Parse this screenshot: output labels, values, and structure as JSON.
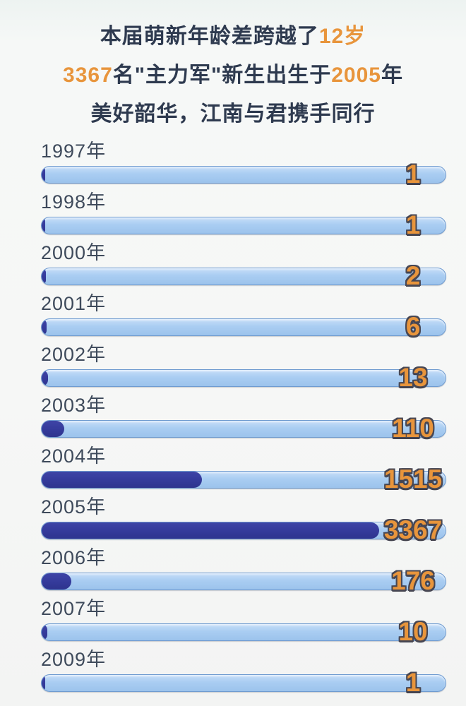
{
  "header": {
    "lines": [
      {
        "segments": [
          {
            "text": "本届萌新年龄差跨越了",
            "color": "navy"
          },
          {
            "text": "12岁",
            "color": "orange"
          }
        ]
      },
      {
        "segments": [
          {
            "text": "3367",
            "color": "orange"
          },
          {
            "text": "名\"主力军\"新生出生于",
            "color": "navy"
          },
          {
            "text": "2005",
            "color": "orange"
          },
          {
            "text": "年",
            "color": "navy"
          }
        ]
      },
      {
        "segments": [
          {
            "text": "美好韶华，江南与君携手同行",
            "color": "navy"
          }
        ]
      }
    ]
  },
  "chart_data": {
    "type": "bar",
    "orientation": "horizontal",
    "title": "本届萌新年龄差跨越了12岁，3367名\"主力军\"新生出生于2005年，美好韶华，江南与君携手同行",
    "categories": [
      "1997年",
      "1998年",
      "2000年",
      "2001年",
      "2002年",
      "2003年",
      "2004年",
      "2005年",
      "2006年",
      "2007年",
      "2009年"
    ],
    "values": [
      1,
      1,
      2,
      6,
      13,
      110,
      1515,
      3367,
      176,
      10,
      1
    ],
    "fill_pct": [
      0.8,
      0.8,
      1.0,
      1.2,
      1.6,
      5.6,
      39.7,
      83.5,
      7.3,
      1.4,
      0.8
    ],
    "xlabel": "",
    "ylabel": "",
    "legend": "none",
    "grid": "off",
    "colors": {
      "track_blue": "#a9cdf2",
      "track_border": "#6f9bd0",
      "fill_indigo": "#343a9a",
      "value_orange": "#e8953c",
      "value_outline": "#474754",
      "label_gray_blue": "#3e4a5b",
      "title_navy": "#2e3a4f",
      "accent_orange": "#e8953c",
      "background": "#f6f7f6"
    }
  }
}
